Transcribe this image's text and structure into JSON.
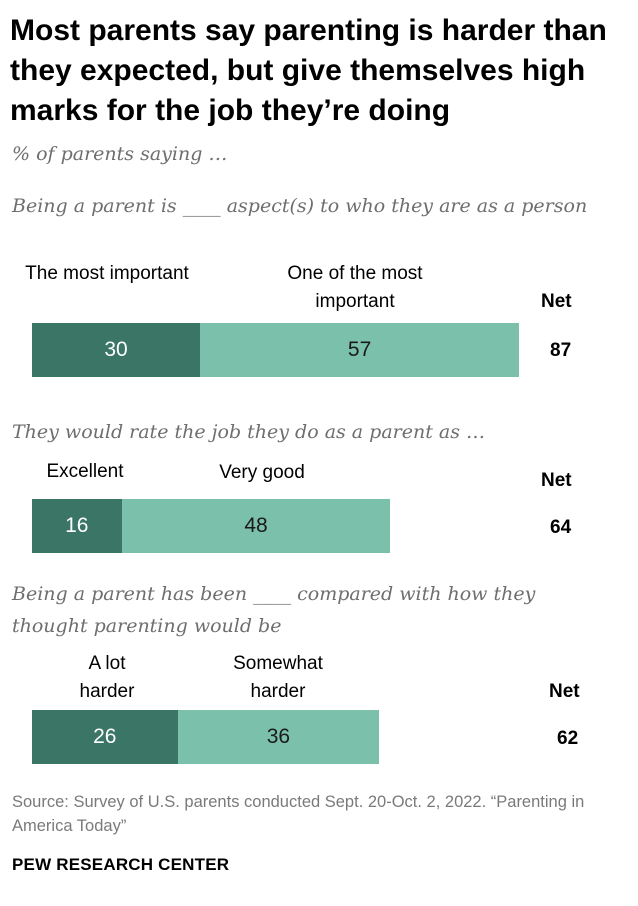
{
  "title": "Most parents say parenting is harder than they expected, but give themselves high marks for the job they’re doing",
  "subtitle": "% of parents saying …",
  "colors": {
    "dark": "#3a7565",
    "light": "#7bc0ab"
  },
  "chart_data": [
    {
      "type": "bar",
      "stacked": true,
      "orientation": "horizontal",
      "question": "Being a parent is ____ aspect(s) to who they are as a person",
      "series": [
        {
          "name": "The most important",
          "values": [
            30
          ]
        },
        {
          "name": "One of the most important",
          "values": [
            57
          ]
        }
      ],
      "net_label": "Net",
      "net_value": 87
    },
    {
      "type": "bar",
      "stacked": true,
      "orientation": "horizontal",
      "question": "They would rate the job they do as a parent as …",
      "series": [
        {
          "name": "Excellent",
          "values": [
            16
          ]
        },
        {
          "name": "Very good",
          "values": [
            48
          ]
        }
      ],
      "net_label": "Net",
      "net_value": 64
    },
    {
      "type": "bar",
      "stacked": true,
      "orientation": "horizontal",
      "question": "Being a parent has been ____ compared with how they thought parenting would be",
      "series": [
        {
          "name": "A lot harder",
          "values": [
            26
          ]
        },
        {
          "name": "Somewhat harder",
          "values": [
            36
          ]
        }
      ],
      "net_label": "Net",
      "net_value": 62
    }
  ],
  "source": "Source: Survey of U.S. parents conducted Sept. 20-Oct. 2, 2022. “Parenting in America Today”",
  "brand": "PEW RESEARCH CENTER"
}
